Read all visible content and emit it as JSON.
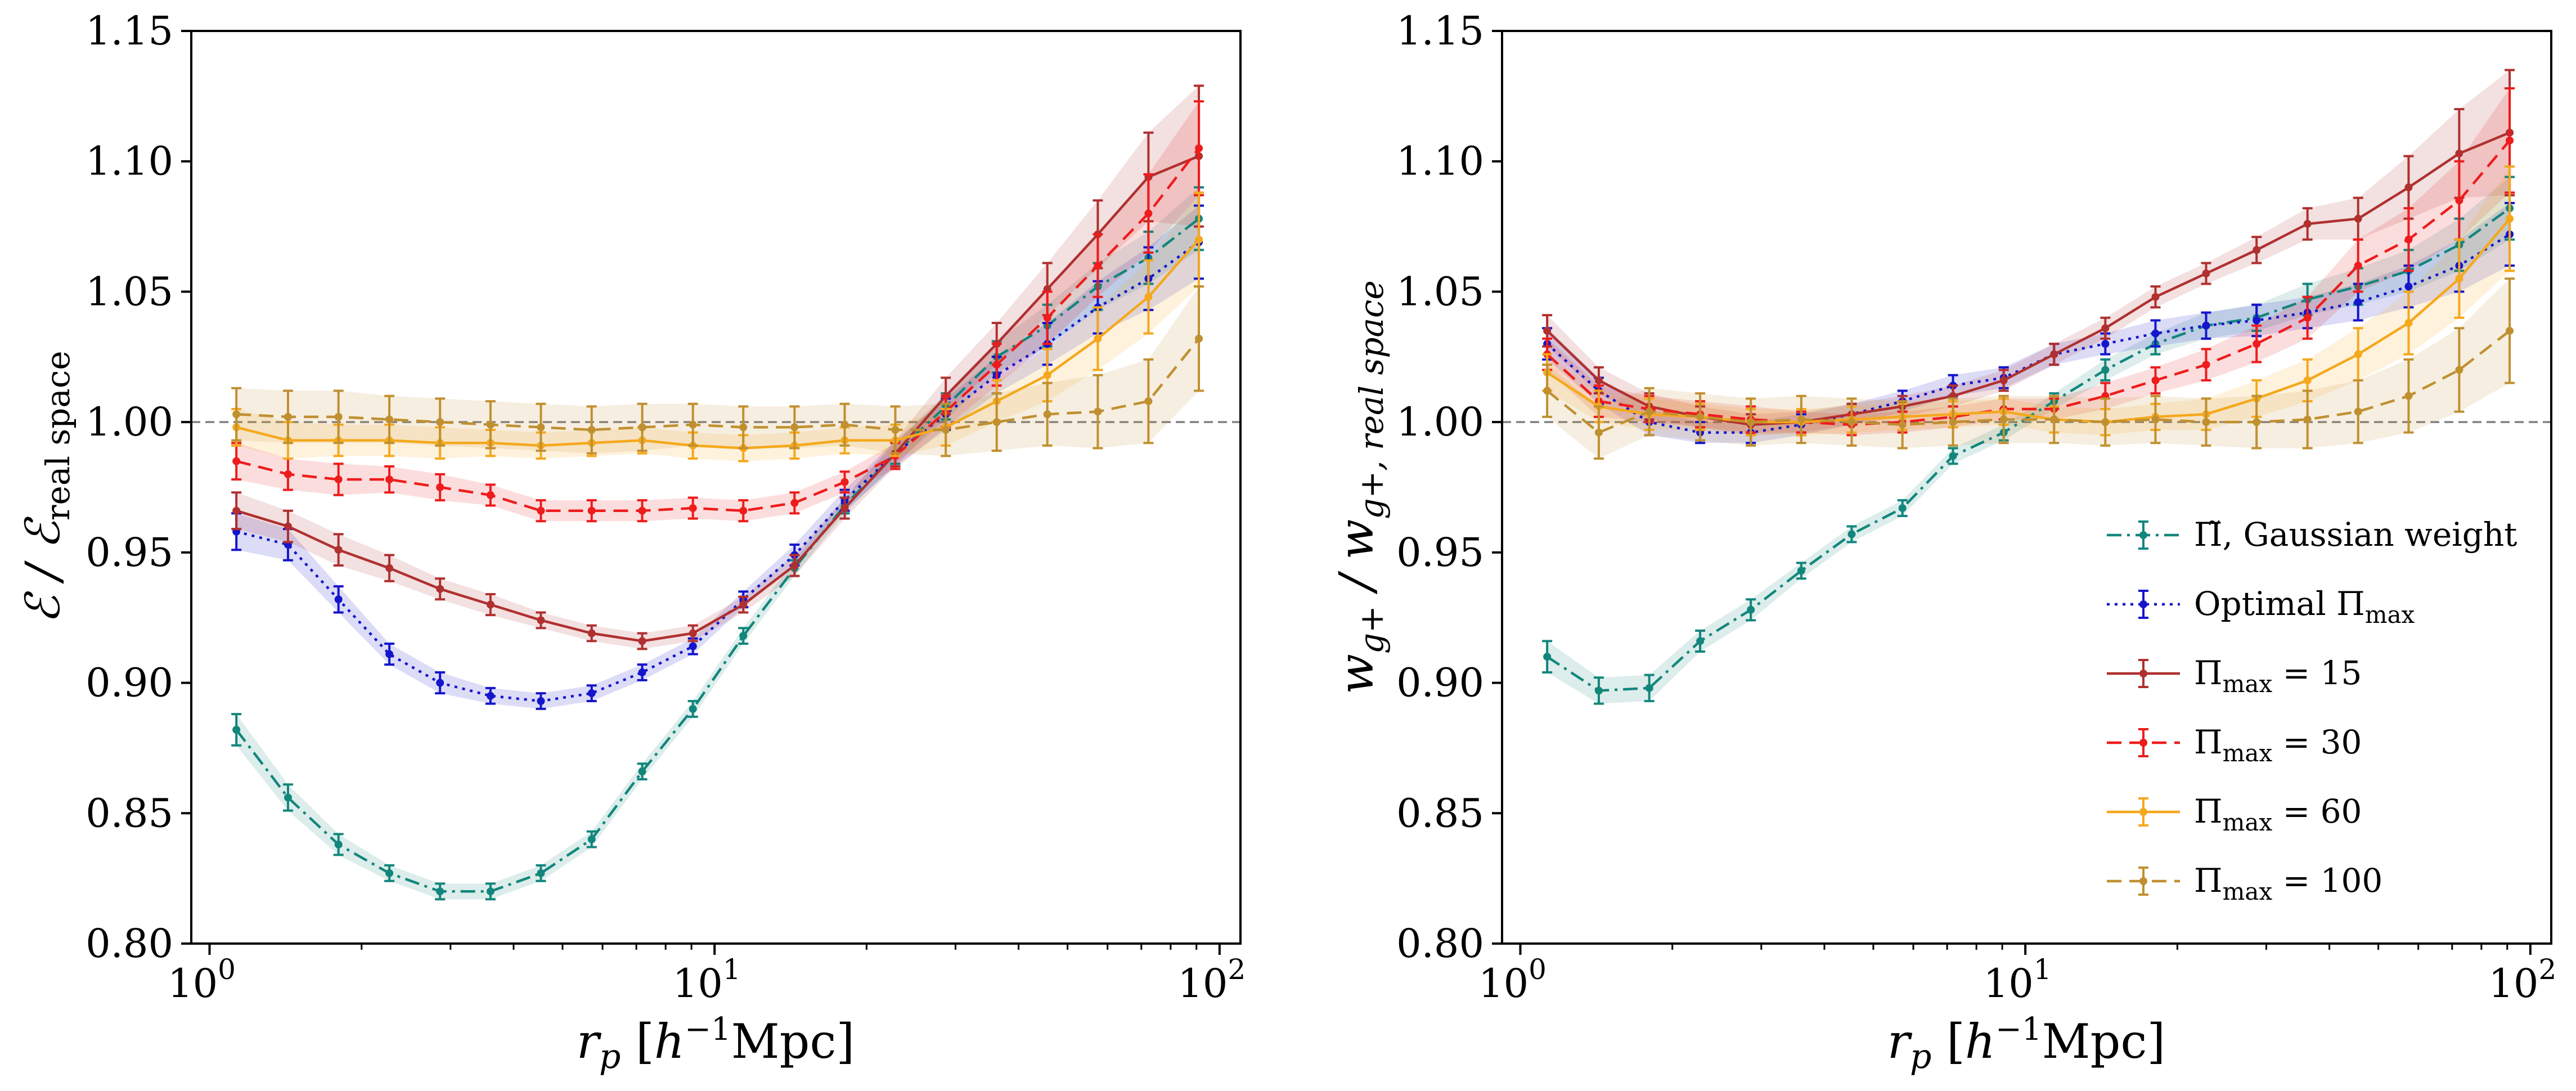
{
  "chart_data": [
    {
      "type": "line",
      "panel": "left",
      "ylabel": "ℰ / ℰreal space",
      "ylabel_main": "ℰ / ℰ",
      "ylabel_sub": "real space",
      "xlabel": "r_p [h^-1 Mpc]",
      "xscale": "log",
      "xlim": [
        0.92,
        110
      ],
      "ylim": [
        0.8,
        1.15
      ],
      "yticks": [
        "0.80",
        "0.85",
        "0.90",
        "0.95",
        "1.00",
        "1.05",
        "1.10",
        "1.15"
      ],
      "xticks": [
        {
          "base": "10",
          "exp": "0"
        },
        {
          "base": "10",
          "exp": "1"
        },
        {
          "base": "10",
          "exp": "2"
        }
      ],
      "reference_line": 1.0,
      "x": [
        1.13,
        1.43,
        1.8,
        2.27,
        2.86,
        3.6,
        4.53,
        5.71,
        7.19,
        9.06,
        11.4,
        14.4,
        18.1,
        22.8,
        28.7,
        36.2,
        45.6,
        57.4,
        72.3,
        91.0
      ],
      "series": [
        {
          "name": "Π̃, Gaussian weight",
          "color": "#13867c",
          "dash": "dashdot",
          "values": [
            0.882,
            0.856,
            0.838,
            0.827,
            0.82,
            0.82,
            0.827,
            0.84,
            0.866,
            0.89,
            0.918,
            0.944,
            0.968,
            0.988,
            1.006,
            1.025,
            1.037,
            1.052,
            1.063,
            1.078
          ],
          "errors": [
            0.006,
            0.005,
            0.004,
            0.003,
            0.003,
            0.003,
            0.003,
            0.003,
            0.003,
            0.003,
            0.003,
            0.003,
            0.003,
            0.004,
            0.005,
            0.006,
            0.008,
            0.009,
            0.01,
            0.012
          ]
        },
        {
          "name": "Optimal Πmax",
          "color": "#1515cc",
          "dash": "dotted",
          "values": [
            0.958,
            0.953,
            0.932,
            0.911,
            0.9,
            0.895,
            0.893,
            0.896,
            0.904,
            0.914,
            0.932,
            0.949,
            0.97,
            0.988,
            1.003,
            1.018,
            1.03,
            1.044,
            1.055,
            1.069
          ],
          "errors": [
            0.007,
            0.006,
            0.005,
            0.004,
            0.004,
            0.003,
            0.003,
            0.003,
            0.003,
            0.003,
            0.003,
            0.004,
            0.004,
            0.005,
            0.006,
            0.007,
            0.008,
            0.01,
            0.012,
            0.014
          ]
        },
        {
          "name": "Πmax = 15",
          "color": "#b03030",
          "dash": "solid",
          "values": [
            0.966,
            0.96,
            0.951,
            0.944,
            0.936,
            0.93,
            0.924,
            0.919,
            0.916,
            0.919,
            0.93,
            0.945,
            0.967,
            0.988,
            1.01,
            1.03,
            1.051,
            1.072,
            1.094,
            1.102
          ],
          "errors": [
            0.007,
            0.006,
            0.006,
            0.005,
            0.004,
            0.004,
            0.003,
            0.003,
            0.003,
            0.003,
            0.003,
            0.004,
            0.004,
            0.005,
            0.007,
            0.008,
            0.01,
            0.013,
            0.017,
            0.027
          ]
        },
        {
          "name": "Πmax = 30",
          "color": "#ee1c1c",
          "dash": "dashed",
          "values": [
            0.985,
            0.98,
            0.978,
            0.978,
            0.975,
            0.972,
            0.966,
            0.966,
            0.966,
            0.967,
            0.966,
            0.969,
            0.977,
            0.987,
            1.004,
            1.022,
            1.04,
            1.06,
            1.08,
            1.105
          ],
          "errors": [
            0.007,
            0.006,
            0.006,
            0.005,
            0.005,
            0.004,
            0.004,
            0.004,
            0.004,
            0.004,
            0.004,
            0.004,
            0.004,
            0.005,
            0.006,
            0.008,
            0.01,
            0.012,
            0.015,
            0.018
          ]
        },
        {
          "name": "Πmax = 60",
          "color": "#f5a81c",
          "dash": "solid",
          "values": [
            0.998,
            0.993,
            0.993,
            0.993,
            0.992,
            0.992,
            0.991,
            0.992,
            0.993,
            0.991,
            0.99,
            0.991,
            0.993,
            0.993,
            0.998,
            1.008,
            1.018,
            1.032,
            1.048,
            1.07
          ],
          "errors": [
            0.007,
            0.007,
            0.006,
            0.006,
            0.006,
            0.005,
            0.005,
            0.005,
            0.005,
            0.005,
            0.005,
            0.005,
            0.005,
            0.006,
            0.007,
            0.008,
            0.01,
            0.012,
            0.014,
            0.018
          ]
        },
        {
          "name": "Πmax = 100",
          "color": "#c09030",
          "dash": "dashed",
          "values": [
            1.003,
            1.002,
            1.002,
            1.001,
            1.0,
            0.999,
            0.998,
            0.997,
            0.998,
            0.999,
            0.998,
            0.998,
            0.999,
            0.997,
            0.997,
            1.0,
            1.003,
            1.004,
            1.008,
            1.032
          ],
          "errors": [
            0.01,
            0.01,
            0.01,
            0.009,
            0.009,
            0.009,
            0.009,
            0.009,
            0.009,
            0.008,
            0.008,
            0.008,
            0.008,
            0.009,
            0.01,
            0.011,
            0.012,
            0.014,
            0.016,
            0.02
          ]
        }
      ]
    },
    {
      "type": "line",
      "panel": "right",
      "ylabel": "w_g+ / w_g+, real space",
      "ylabel_main": "w",
      "ylabel_sub1": "g+",
      "ylabel_mid": " / w",
      "ylabel_sub2": "g+, real space",
      "xlabel": "r_p [h^-1 Mpc]",
      "xscale": "log",
      "xlim": [
        0.92,
        110
      ],
      "ylim": [
        0.8,
        1.15
      ],
      "yticks": [
        "0.80",
        "0.85",
        "0.90",
        "0.95",
        "1.00",
        "1.05",
        "1.10",
        "1.15"
      ],
      "xticks": [
        {
          "base": "10",
          "exp": "0"
        },
        {
          "base": "10",
          "exp": "1"
        },
        {
          "base": "10",
          "exp": "2"
        }
      ],
      "reference_line": 1.0,
      "legend_position": "lower-right",
      "x": [
        1.13,
        1.43,
        1.8,
        2.27,
        2.86,
        3.6,
        4.53,
        5.71,
        7.19,
        9.06,
        11.4,
        14.4,
        18.1,
        22.8,
        28.7,
        36.2,
        45.6,
        57.4,
        72.3,
        91.0
      ],
      "series": [
        {
          "name": "Π̃, Gaussian weight",
          "color": "#13867c",
          "dash": "dashdot",
          "values": [
            0.91,
            0.897,
            0.898,
            0.916,
            0.928,
            0.943,
            0.957,
            0.967,
            0.987,
            0.996,
            1.008,
            1.02,
            1.03,
            1.037,
            1.04,
            1.047,
            1.052,
            1.058,
            1.068,
            1.082
          ],
          "errors": [
            0.006,
            0.005,
            0.005,
            0.004,
            0.004,
            0.003,
            0.003,
            0.003,
            0.003,
            0.003,
            0.003,
            0.004,
            0.004,
            0.005,
            0.005,
            0.006,
            0.007,
            0.008,
            0.01,
            0.012
          ]
        },
        {
          "name": "Optimal Πmax",
          "color": "#1515cc",
          "dash": "dotted",
          "values": [
            1.03,
            1.012,
            1.0,
            0.996,
            0.996,
            0.999,
            1.003,
            1.008,
            1.014,
            1.017,
            1.026,
            1.03,
            1.034,
            1.037,
            1.039,
            1.042,
            1.046,
            1.052,
            1.06,
            1.072
          ],
          "errors": [
            0.006,
            0.005,
            0.005,
            0.004,
            0.004,
            0.004,
            0.004,
            0.004,
            0.004,
            0.004,
            0.004,
            0.004,
            0.005,
            0.005,
            0.006,
            0.006,
            0.007,
            0.008,
            0.01,
            0.012
          ]
        },
        {
          "name": "Πmax = 15",
          "color": "#b03030",
          "dash": "solid",
          "values": [
            1.035,
            1.016,
            1.006,
            1.002,
            0.999,
            1.0,
            1.003,
            1.006,
            1.01,
            1.016,
            1.026,
            1.036,
            1.048,
            1.057,
            1.066,
            1.076,
            1.078,
            1.09,
            1.103,
            1.111
          ],
          "errors": [
            0.006,
            0.005,
            0.005,
            0.004,
            0.004,
            0.004,
            0.004,
            0.004,
            0.004,
            0.004,
            0.004,
            0.004,
            0.004,
            0.004,
            0.005,
            0.006,
            0.008,
            0.012,
            0.017,
            0.024
          ]
        },
        {
          "name": "Πmax = 30",
          "color": "#ee1c1c",
          "dash": "dashed",
          "values": [
            1.026,
            1.008,
            1.005,
            1.003,
            1.001,
            1.0,
            0.999,
            1.0,
            1.002,
            1.005,
            1.005,
            1.01,
            1.016,
            1.022,
            1.03,
            1.04,
            1.06,
            1.07,
            1.085,
            1.108
          ],
          "errors": [
            0.006,
            0.006,
            0.005,
            0.005,
            0.005,
            0.004,
            0.004,
            0.004,
            0.004,
            0.004,
            0.004,
            0.005,
            0.005,
            0.006,
            0.007,
            0.008,
            0.01,
            0.012,
            0.015,
            0.02
          ]
        },
        {
          "name": "Πmax = 60",
          "color": "#f5a81c",
          "dash": "solid",
          "values": [
            1.019,
            1.006,
            1.003,
            1.002,
            1.0,
            1.0,
            1.001,
            1.002,
            1.003,
            1.004,
            1.001,
            1.0,
            1.002,
            1.003,
            1.009,
            1.016,
            1.026,
            1.038,
            1.055,
            1.078
          ],
          "errors": [
            0.007,
            0.006,
            0.006,
            0.005,
            0.005,
            0.005,
            0.005,
            0.005,
            0.005,
            0.005,
            0.005,
            0.005,
            0.005,
            0.006,
            0.007,
            0.008,
            0.01,
            0.012,
            0.015,
            0.02
          ]
        },
        {
          "name": "Πmax = 100",
          "color": "#c09030",
          "dash": "dashed",
          "values": [
            1.012,
            0.996,
            1.004,
            1.002,
            1.0,
            1.001,
            1.0,
            0.999,
            1.0,
            1.001,
            1.001,
            1.0,
            1.001,
            1.0,
            1.0,
            1.001,
            1.004,
            1.01,
            1.02,
            1.035
          ],
          "errors": [
            0.01,
            0.01,
            0.009,
            0.009,
            0.009,
            0.009,
            0.009,
            0.009,
            0.009,
            0.009,
            0.009,
            0.009,
            0.009,
            0.009,
            0.01,
            0.011,
            0.012,
            0.014,
            0.016,
            0.02
          ]
        }
      ]
    }
  ],
  "legend_items": [
    {
      "text": "Π̃, Gaussian weight",
      "main": "Π̃, Gaussian weight",
      "sub": "",
      "tail": ""
    },
    {
      "text": "Optimal Πmax",
      "main": "Optimal Π",
      "sub": "max",
      "tail": ""
    },
    {
      "text": "Πmax = 15",
      "main": "Π",
      "sub": "max",
      "tail": " = 15"
    },
    {
      "text": "Πmax = 30",
      "main": "Π",
      "sub": "max",
      "tail": " = 30"
    },
    {
      "text": "Πmax = 60",
      "main": "Π",
      "sub": "max",
      "tail": " = 60"
    },
    {
      "text": "Πmax = 100",
      "main": "Π",
      "sub": "max",
      "tail": " = 100"
    }
  ],
  "xlabel_parts": {
    "r": "r",
    "p": "p",
    "open": " [",
    "h": "h",
    "exp": "−1",
    "unit": "Mpc]"
  }
}
